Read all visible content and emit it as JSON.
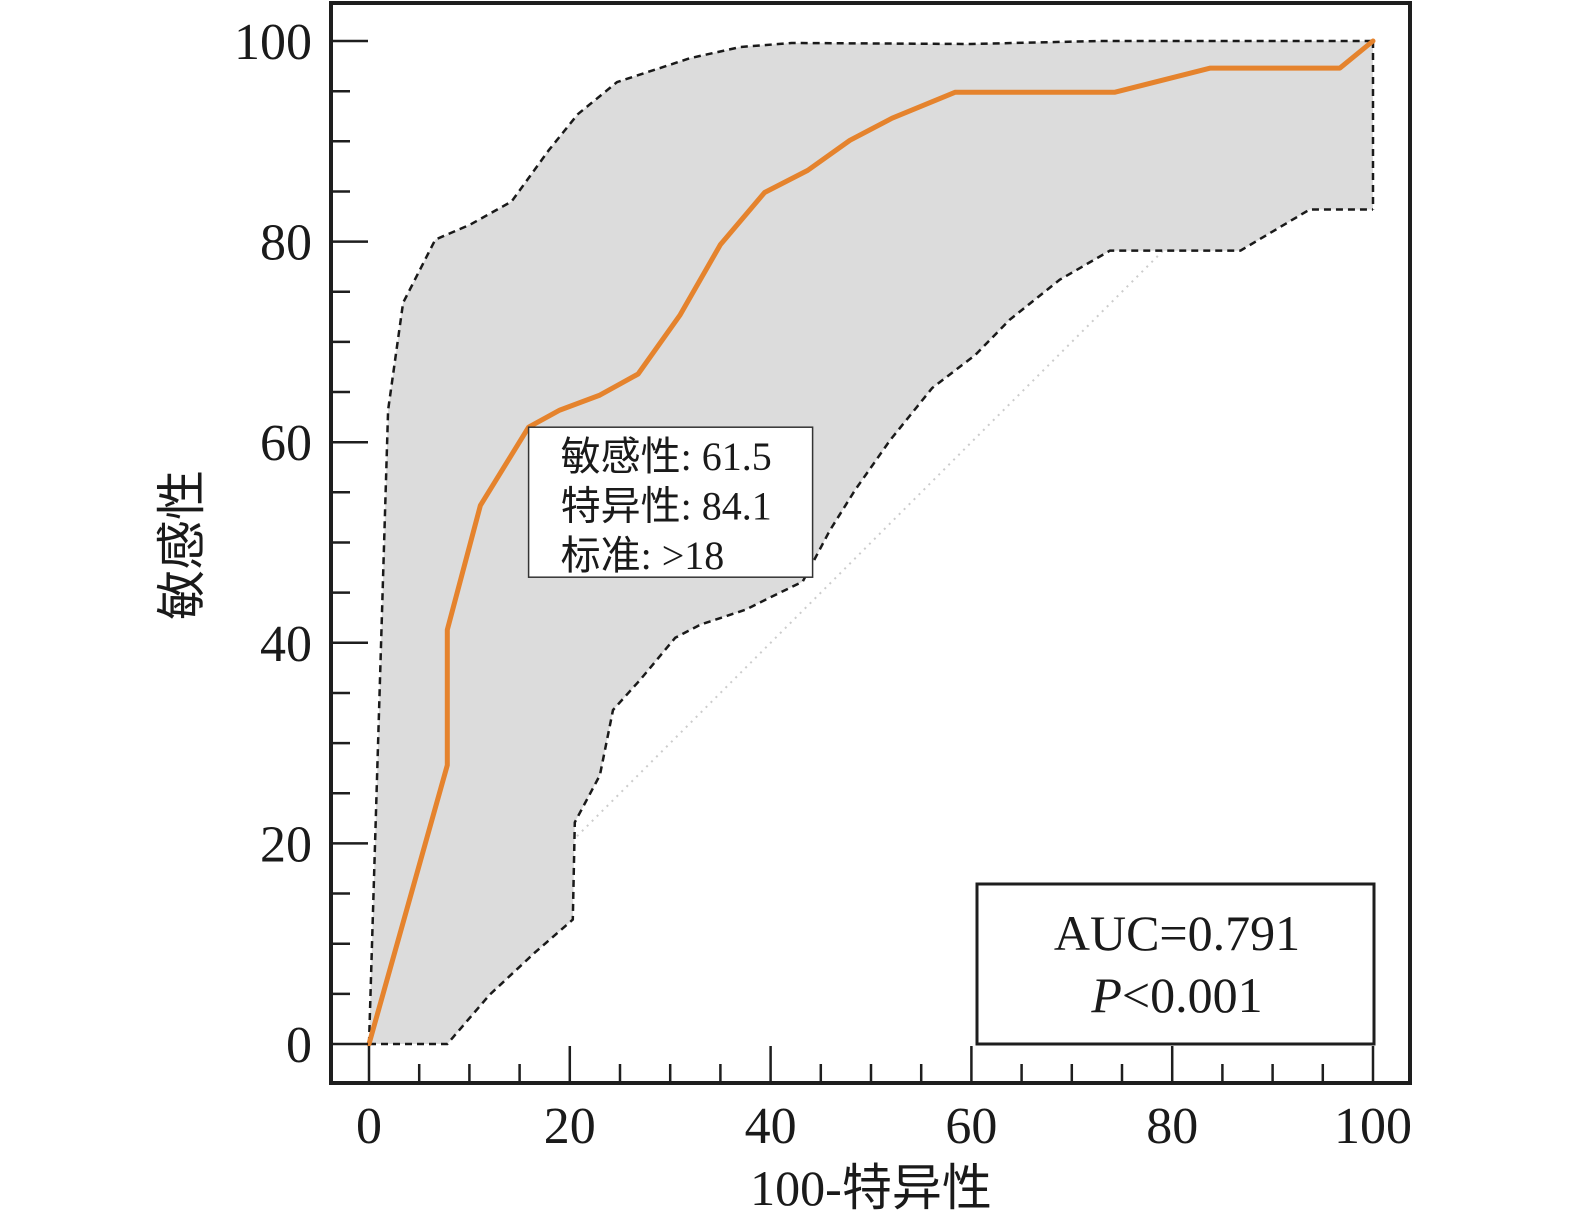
{
  "chart_data": {
    "type": "line",
    "xlabel": "100-特异性",
    "ylabel": "敏感性",
    "xlim": [
      0,
      100
    ],
    "ylim": [
      0,
      100
    ],
    "xticks": [
      0,
      20,
      40,
      60,
      80,
      100
    ],
    "yticks": [
      0,
      20,
      40,
      60,
      80,
      100
    ],
    "minor_tick_step": 5,
    "grid": false,
    "series": [
      {
        "x": [
          0,
          7.8,
          7.8,
          11.1,
          15.9,
          19.0,
          23.0,
          26.8,
          31.0,
          35.0,
          39.4,
          43.7,
          47.9,
          52.1,
          58.4,
          74.3,
          83.8,
          96.7,
          100
        ],
        "y": [
          0,
          27.8,
          41.3,
          53.7,
          61.5,
          63.2,
          64.7,
          66.8,
          72.7,
          79.7,
          84.9,
          87.1,
          90.1,
          92.3,
          94.9,
          94.9,
          97.3,
          97.3,
          100
        ],
        "color": "#e5832d"
      }
    ],
    "confidence_band": {
      "upper": {
        "x": [
          0,
          1.9,
          3.4,
          6.6,
          10.1,
          14.2,
          17.9,
          20.8,
          24.7,
          32.0,
          37.0,
          42.1,
          59.9,
          72.8,
          100
        ],
        "y": [
          0,
          63.2,
          73.9,
          80.2,
          81.7,
          84.0,
          89.1,
          92.7,
          95.9,
          98.3,
          99.4,
          99.8,
          99.7,
          100,
          100
        ]
      },
      "lower": {
        "x": [
          0,
          7.8,
          12.0,
          16.5,
          20.3,
          20.5,
          23.0,
          24.3,
          27.0,
          30.5,
          33.0,
          37.5,
          39.9,
          43.2,
          45.9,
          48.4,
          51.9,
          56.1,
          60.4,
          63.8,
          68.8,
          73.8,
          86.8,
          93.7,
          100
        ],
        "y": [
          0,
          0,
          4.9,
          9.1,
          12.4,
          22.1,
          26.8,
          33.3,
          36.3,
          40.5,
          41.8,
          43.3,
          44.5,
          46.1,
          51.2,
          55.2,
          60.2,
          65.4,
          68.7,
          72.2,
          76.2,
          79.1,
          79.1,
          83.2,
          83.2
        ]
      },
      "fill": "#dcdcdc",
      "stroke": "#1a1a1a",
      "line_style": "dashed"
    },
    "reference_line": {
      "x": [
        0,
        100
      ],
      "y": [
        0,
        100
      ],
      "color": "#cccccc",
      "line_style": "dotted"
    },
    "annotation": {
      "operating_point": {
        "x": 15.9,
        "y": 61.5
      },
      "lines": [
        "敏感性: 61.5",
        "特异性: 84.1",
        "标准: >18"
      ]
    },
    "stats_box": {
      "placement": "bottom-right",
      "auc": "AUC=0.791",
      "p_symbol": "P",
      "p_value": "<0.001"
    }
  }
}
